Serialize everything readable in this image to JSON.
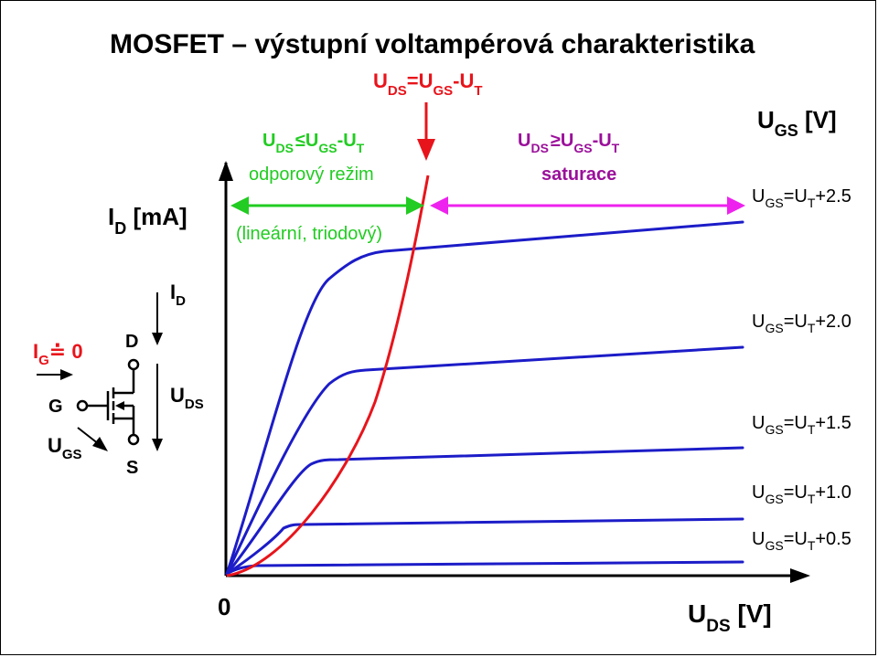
{
  "title": "MOSFET – výstupní voltampérová charakteristika",
  "axes": {
    "y_label_main": "I",
    "y_label_sub": "D",
    "y_label_unit": " [mA]",
    "x_label_main": "U",
    "x_label_sub": "DS",
    "x_label_unit": " [V]",
    "origin_label": "0",
    "legend_title_main": "U",
    "legend_title_sub": "GS",
    "legend_title_unit": " [V]"
  },
  "boundary": {
    "main1": "U",
    "sub1": "DS",
    "mid": "=U",
    "sub2": "GS",
    "mid2": "-U",
    "sub3": "T",
    "color": "#e8141b"
  },
  "regions": {
    "ohmic_condition": {
      "a": "U",
      "a_sub": "DS",
      "op": "≤U",
      "b_sub": "GS",
      "c": "-U",
      "c_sub": "T"
    },
    "ohmic_name": "odporový režim",
    "ohmic_note": "(lineární, triodový)",
    "ohmic_color": "#22cc22",
    "saturation_condition": {
      "a": "U",
      "a_sub": "DS",
      "op": "≥U",
      "b_sub": "GS",
      "c": "-U",
      "c_sub": "T"
    },
    "saturation_name": "saturace",
    "saturation_color": "#9b0f9b",
    "saturation_arrow_color": "#ee22ee"
  },
  "curves": [
    {
      "pre": "U",
      "sub": "GS",
      "mid": "=U",
      "sub2": "T",
      "tail": "+2.5"
    },
    {
      "pre": "U",
      "sub": "GS",
      "mid": "=U",
      "sub2": "T",
      "tail": "+2.0"
    },
    {
      "pre": "U",
      "sub": "GS",
      "mid": "=U",
      "sub2": "T",
      "tail": "+1.5"
    },
    {
      "pre": "U",
      "sub": "GS",
      "mid": "=U",
      "sub2": "T",
      "tail": "+1.0"
    },
    {
      "pre": "U",
      "sub": "GS",
      "mid": "=U",
      "sub2": "T",
      "tail": "+0.5"
    }
  ],
  "curve_color": "#1c1cc8",
  "symbol": {
    "ig_main": "I",
    "ig_sub": "G",
    "ig_tail": "≐ 0",
    "id_main": "I",
    "id_sub": "D",
    "uds_main": "U",
    "uds_sub": "DS",
    "ugs_main": "U",
    "ugs_sub": "GS",
    "drain": "D",
    "gate": "G",
    "source": "S"
  }
}
